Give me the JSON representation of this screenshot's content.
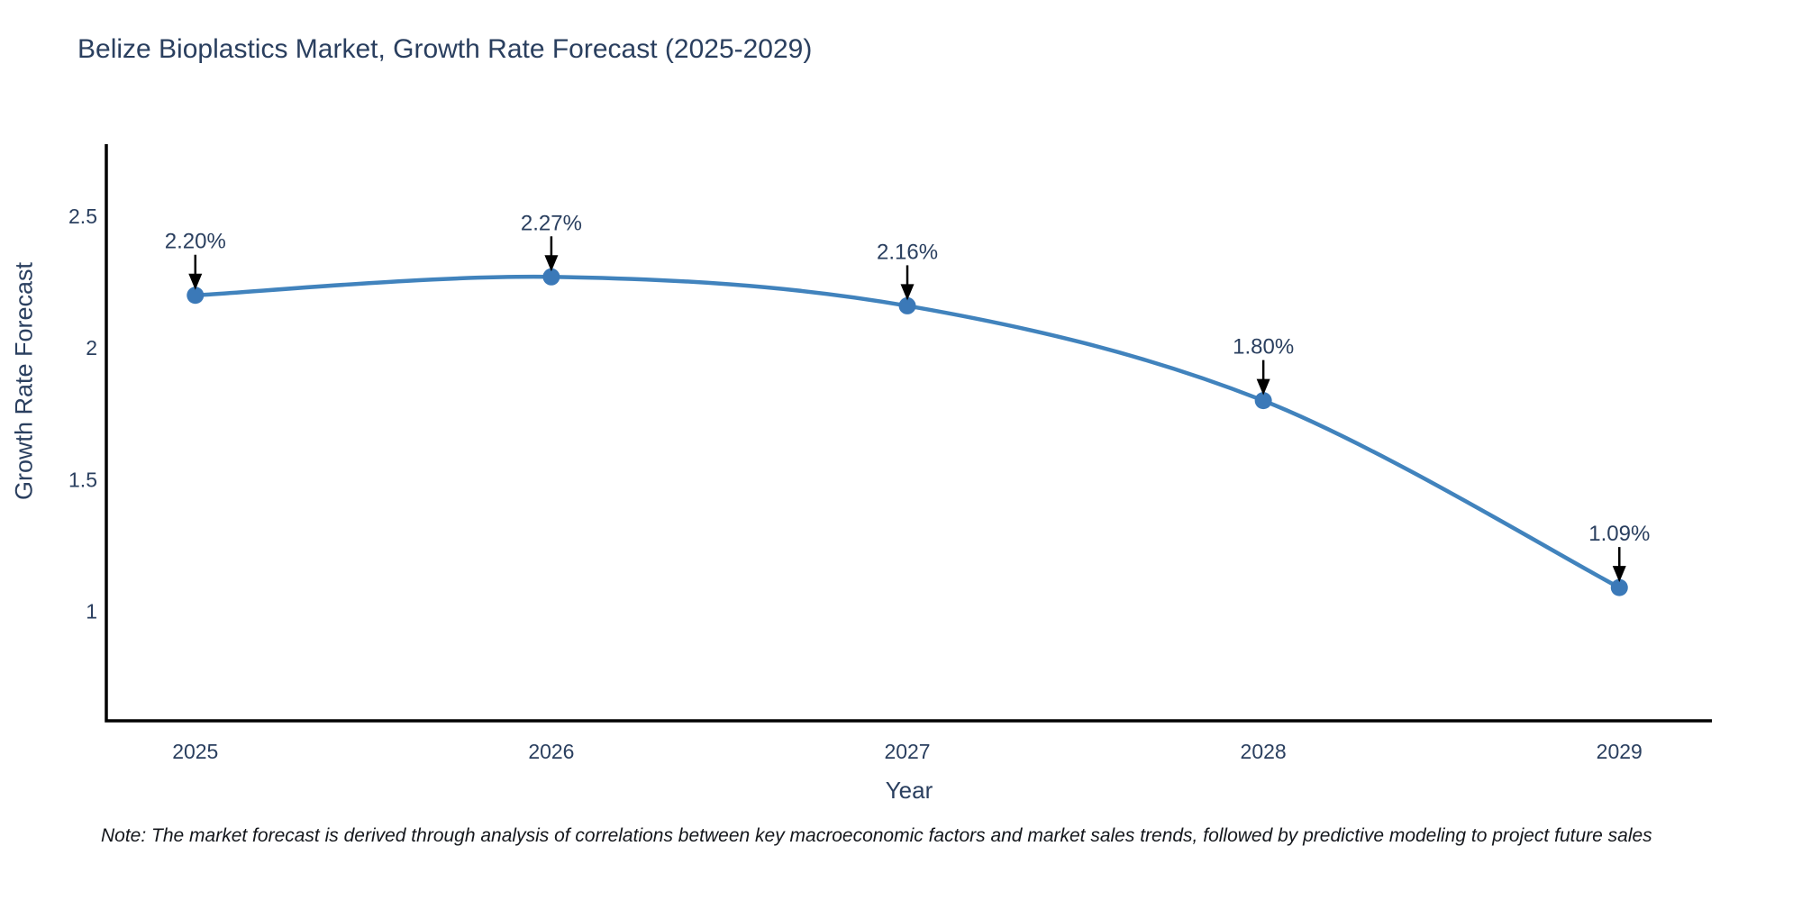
{
  "note": "Note: The market forecast is derived through analysis of correlations between key macroeconomic factors and market sales trends, followed by predictive modeling to project future sales",
  "chart_data": {
    "type": "line",
    "title": "Belize Bioplastics Market, Growth Rate Forecast (2025-2029)",
    "xlabel": "Year",
    "ylabel": "Growth Rate Forecast",
    "x": [
      2025,
      2026,
      2027,
      2028,
      2029
    ],
    "y": [
      2.2,
      2.27,
      2.16,
      1.8,
      1.09
    ],
    "point_labels": [
      "2.20%",
      "2.27%",
      "2.16%",
      "1.80%",
      "1.09%"
    ],
    "xtick_labels": [
      "2025",
      "2026",
      "2027",
      "2028",
      "2029"
    ],
    "ytick_values": [
      1,
      1.5,
      2,
      2.5
    ],
    "ytick_labels": [
      "1",
      "1.5",
      "2",
      "2.5"
    ],
    "xlim": [
      2024.75,
      2029.26
    ],
    "ylim": [
      0.584,
      2.774
    ],
    "grid": false,
    "legend": false,
    "line_shape": "spline",
    "line_color": "#4183bd",
    "marker_color": "#3b79b8",
    "axis_color": "#000000",
    "text_color": "#2a3f5f",
    "arrow_color": "#000000"
  }
}
